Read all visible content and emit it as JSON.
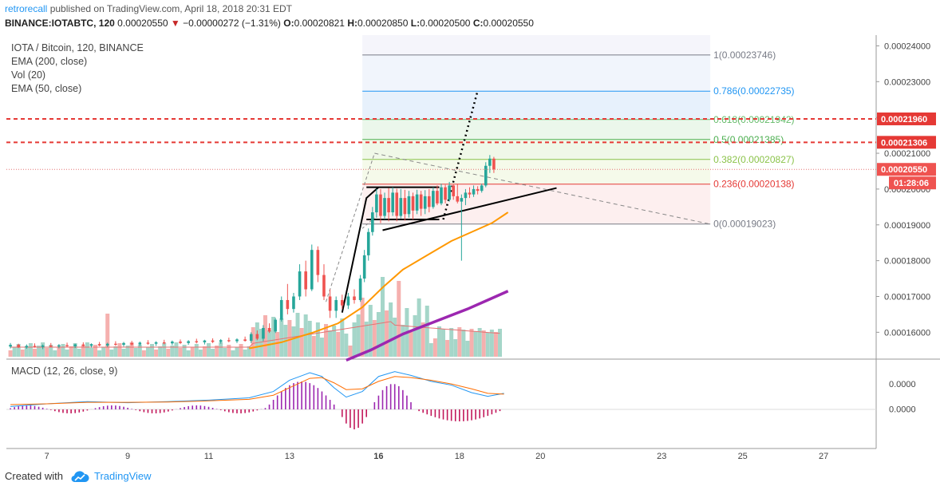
{
  "header": {
    "author": "retrorecall",
    "published": "published on TradingView.com, April 18, 2018 20:31 EDT",
    "symbol": "BINANCE:IOTABTC, 120",
    "last": "0.00020550",
    "change": "−0.00000272 (−1.31%)",
    "o_label": "O:",
    "o": "0.00020821",
    "h_label": "H:",
    "h": "0.00020850",
    "l_label": "L:",
    "l": "0.00020500",
    "c_label": "C:",
    "c": "0.00020550"
  },
  "legend": {
    "pair": "IOTA / Bitcoin, 120, BINANCE",
    "ema200": "EMA (200, close)",
    "vol": "Vol (20)",
    "ema50": "EMA (50, close)"
  },
  "macd_title": "MACD (12, 26, close, 9)",
  "footer": {
    "created": "Created with",
    "brand": "TradingView"
  },
  "colors": {
    "up": "#26a69a",
    "down": "#ef5350",
    "ema50": "#ff9800",
    "ema200": "#9c27b0",
    "macd": "#2196f3",
    "signal": "#ff6d00",
    "hist_pos": "#9c27b0",
    "red_line": "#e53935"
  },
  "chart_data": {
    "type": "candlestick",
    "price_axis": {
      "ylim": [
        0.0001525,
        0.000243
      ],
      "ticks": [
        "0.00024000",
        "0.00023000",
        "0.00022000",
        "0.00021000",
        "0.00020000",
        "0.00019000",
        "0.00018000",
        "0.00017000",
        "0.00016000"
      ],
      "tick_values": [
        0.00024,
        0.00023,
        0.00022,
        0.00021,
        0.0002,
        0.00019,
        0.00018,
        0.00017,
        0.00016
      ]
    },
    "macd_axis": {
      "ticks": [
        "0.0000",
        "0.0000"
      ]
    },
    "x_axis": {
      "labels": [
        "7",
        "9",
        "11",
        "13",
        "16",
        "18",
        "20",
        "23",
        "25",
        "27"
      ],
      "day_index": [
        1,
        3,
        5,
        7,
        9.2,
        11.2,
        13.2,
        16.2,
        18.2,
        20.2
      ],
      "range_days": [
        0.0,
        21.5
      ]
    },
    "price_tags": [
      {
        "label": "0.00021960",
        "value": 0.0002196,
        "kind": "horizontal-line"
      },
      {
        "label": "0.00021306",
        "value": 0.00021306,
        "kind": "horizontal-line"
      },
      {
        "label": "0.00020550",
        "value": 0.0002055,
        "kind": "last-price"
      },
      {
        "label": "01:28:06",
        "kind": "countdown"
      }
    ],
    "fibonacci": [
      {
        "level": "1",
        "text": "1(0.00023746)",
        "value": 0.00023746,
        "color": "#787b86"
      },
      {
        "level": "0.786",
        "text": "0.786(0.00022735)",
        "value": 0.00022735,
        "color": "#2196f3"
      },
      {
        "level": "0.618",
        "text": "0.618(0.00021942)",
        "value": 0.00021942,
        "color": "#66bb6a"
      },
      {
        "level": "0.5",
        "text": "0.5(0.00021385)",
        "value": 0.00021385,
        "color": "#4caf50"
      },
      {
        "level": "0.382",
        "text": "0.382(0.00020827)",
        "value": 0.00020827,
        "color": "#8bc34a"
      },
      {
        "level": "0.236",
        "text": "0.236(0.00020138)",
        "value": 0.00020138,
        "color": "#e53935"
      },
      {
        "level": "0",
        "text": "0(0.00019023)",
        "value": 0.00019023,
        "color": "#787b86"
      }
    ],
    "fib_span_days": [
      8.8,
      17.4
    ],
    "candles": [
      [
        0.1,
        0.000156,
        0.000157,
        0.0001555,
        0.0001565
      ],
      [
        0.3,
        0.0001565,
        0.0001568,
        0.0001556,
        0.0001558
      ],
      [
        0.5,
        0.0001558,
        0.0001566,
        0.0001554,
        0.0001562
      ],
      [
        0.7,
        0.0001562,
        0.0001569,
        0.0001557,
        0.0001559
      ],
      [
        0.9,
        0.0001559,
        0.0001566,
        0.0001553,
        0.0001563
      ],
      [
        1.1,
        0.0001563,
        0.000157,
        0.0001558,
        0.000156
      ],
      [
        1.3,
        0.000156,
        0.0001567,
        0.0001555,
        0.0001564
      ],
      [
        1.5,
        0.0001564,
        0.0001571,
        0.0001559,
        0.0001561
      ],
      [
        1.7,
        0.0001561,
        0.0001568,
        0.0001556,
        0.0001566
      ],
      [
        1.9,
        0.0001566,
        0.0001572,
        0.000156,
        0.0001562
      ],
      [
        2.1,
        0.0001562,
        0.0001569,
        0.0001557,
        0.0001567
      ],
      [
        2.3,
        0.0001567,
        0.0001573,
        0.0001561,
        0.0001563
      ],
      [
        2.5,
        0.0001563,
        0.0001571,
        0.0001559,
        0.0001568
      ],
      [
        2.7,
        0.0001568,
        0.0001575,
        0.0001562,
        0.0001565
      ],
      [
        2.9,
        0.0001565,
        0.0001573,
        0.000156,
        0.000157
      ],
      [
        3.1,
        0.000157,
        0.0001576,
        0.0001563,
        0.0001566
      ],
      [
        3.3,
        0.0001566,
        0.0001574,
        0.0001561,
        0.0001571
      ],
      [
        3.5,
        0.0001571,
        0.0001578,
        0.0001565,
        0.0001568
      ],
      [
        3.7,
        0.0001568,
        0.0001575,
        0.0001562,
        0.0001572
      ],
      [
        3.9,
        0.0001572,
        0.0001579,
        0.0001566,
        0.0001569
      ],
      [
        4.1,
        0.0001569,
        0.0001577,
        0.0001564,
        0.0001574
      ],
      [
        4.3,
        0.0001574,
        0.000158,
        0.0001567,
        0.000157
      ],
      [
        4.5,
        0.000157,
        0.0001578,
        0.0001565,
        0.0001575
      ],
      [
        4.7,
        0.0001575,
        0.0001582,
        0.0001569,
        0.0001572
      ],
      [
        4.9,
        0.0001572,
        0.0001579,
        0.0001566,
        0.0001577
      ],
      [
        5.1,
        0.0001577,
        0.0001583,
        0.000157,
        0.0001573
      ],
      [
        5.3,
        0.0001573,
        0.0001581,
        0.0001568,
        0.0001578
      ],
      [
        5.5,
        0.0001578,
        0.0001585,
        0.0001572,
        0.0001575
      ],
      [
        5.7,
        0.0001575,
        0.0001583,
        0.000157,
        0.000158
      ],
      [
        5.9,
        0.000158,
        0.0001588,
        0.0001574,
        0.0001576
      ],
      [
        6.05,
        0.0001576,
        0.00016,
        0.000157,
        0.0001595
      ],
      [
        6.2,
        0.0001595,
        0.0001605,
        0.0001578,
        0.0001582
      ],
      [
        6.35,
        0.0001582,
        0.000162,
        0.0001575,
        0.0001612
      ],
      [
        6.5,
        0.0001612,
        0.0001625,
        0.0001598,
        0.0001602
      ],
      [
        6.65,
        0.0001602,
        0.000164,
        0.0001598,
        0.0001635
      ],
      [
        6.8,
        0.0001635,
        0.00017,
        0.000163,
        0.000169
      ],
      [
        6.95,
        0.000169,
        0.0001735,
        0.000165,
        0.0001665
      ],
      [
        7.1,
        0.0001665,
        0.000171,
        0.0001655,
        0.00017
      ],
      [
        7.25,
        0.00017,
        0.000179,
        0.000169,
        0.000177
      ],
      [
        7.4,
        0.000177,
        0.00018,
        0.00017,
        0.000172
      ],
      [
        7.55,
        0.000172,
        0.0001845,
        0.0001715,
        0.000183
      ],
      [
        7.7,
        0.000183,
        0.000184,
        0.000174,
        0.000176
      ],
      [
        7.85,
        0.000176,
        0.000179,
        0.000169,
        0.00017
      ],
      [
        8.0,
        0.00017,
        0.000172,
        0.000164,
        0.000166
      ],
      [
        8.15,
        0.000166,
        0.00017,
        0.000164,
        0.000169
      ],
      [
        8.3,
        0.000169,
        0.0001705,
        0.0001665,
        0.0001675
      ],
      [
        8.45,
        0.0001675,
        0.000171,
        0.0001665,
        0.00017
      ],
      [
        8.6,
        0.00017,
        0.000172,
        0.000168,
        0.000169
      ],
      [
        8.75,
        0.000169,
        0.000176,
        0.0001685,
        0.000175
      ],
      [
        8.85,
        0.000175,
        0.000183,
        0.000174,
        0.0001815
      ],
      [
        8.95,
        0.0001815,
        0.000189,
        0.00018,
        0.000188
      ],
      [
        9.05,
        0.000188,
        0.000195,
        0.000187,
        0.0001935
      ],
      [
        9.15,
        0.0001935,
        0.0002,
        0.000192,
        0.0001985
      ],
      [
        9.25,
        0.0001985,
        0.0002,
        0.0001905,
        0.0001925
      ],
      [
        9.35,
        0.0001925,
        0.000199,
        0.0001915,
        0.0001975
      ],
      [
        9.45,
        0.0001975,
        0.0002003,
        0.000191,
        0.0001935
      ],
      [
        9.55,
        0.0001935,
        0.0002005,
        0.0001925,
        0.000199
      ],
      [
        9.65,
        0.000199,
        0.0002001,
        0.000191,
        0.0001925
      ],
      [
        9.75,
        0.0001925,
        0.0002,
        0.0001918,
        0.0001975
      ],
      [
        9.85,
        0.0001975,
        0.0001998,
        0.0001912,
        0.000193
      ],
      [
        9.95,
        0.000193,
        0.0001995,
        0.000192,
        0.000198
      ],
      [
        10.05,
        0.000198,
        0.000199,
        0.0001915,
        0.000194
      ],
      [
        10.15,
        0.000194,
        0.0001998,
        0.000193,
        0.0001985
      ],
      [
        10.25,
        0.0001985,
        0.0001995,
        0.0001925,
        0.0001945
      ],
      [
        10.35,
        0.0001945,
        0.0001997,
        0.000193,
        0.000198
      ],
      [
        10.45,
        0.000198,
        0.0002,
        0.0001935,
        0.000195
      ],
      [
        10.55,
        0.000195,
        0.0002005,
        0.0001945,
        0.0001995
      ],
      [
        10.65,
        0.0001995,
        0.000201,
        0.0001955,
        0.000196
      ],
      [
        10.75,
        0.000196,
        0.0002015,
        0.0001955,
        0.0002005
      ],
      [
        10.85,
        0.0002005,
        0.0002012,
        0.000196,
        0.000197
      ],
      [
        10.95,
        0.000197,
        0.000202,
        0.0001965,
        0.000201
      ],
      [
        11.05,
        0.000201,
        0.0002012,
        0.000197,
        0.000198
      ],
      [
        11.15,
        0.000198,
        0.0002015,
        0.000196,
        0.0001965
      ],
      [
        11.25,
        0.0001965,
        0.0001985,
        0.00018,
        0.0001975
      ],
      [
        11.35,
        0.0001975,
        0.0002,
        0.0001955,
        0.000199
      ],
      [
        11.45,
        0.000199,
        0.0002005,
        0.0001975,
        0.0001985
      ],
      [
        11.55,
        0.0001985,
        0.000201,
        0.0001978,
        0.0002
      ],
      [
        11.65,
        0.0002,
        0.0002008,
        0.0001985,
        0.0001995
      ],
      [
        11.75,
        0.0001995,
        0.0002015,
        0.000199,
        0.000201
      ],
      [
        11.85,
        0.000201,
        0.0002075,
        0.0002005,
        0.0002065
      ],
      [
        11.95,
        0.0002065,
        0.0002095,
        0.0002045,
        0.0002085
      ],
      [
        12.05,
        0.0002085,
        0.000209,
        0.0002045,
        0.0002055
      ]
    ],
    "ema50": [
      [
        6.0,
        0.0001555
      ],
      [
        6.8,
        0.0001572
      ],
      [
        7.6,
        0.00016
      ],
      [
        8.2,
        0.0001625
      ],
      [
        8.8,
        0.000167
      ],
      [
        9.3,
        0.0001725
      ],
      [
        9.8,
        0.0001775
      ],
      [
        10.4,
        0.0001815
      ],
      [
        11.0,
        0.0001855
      ],
      [
        11.5,
        0.000188
      ],
      [
        12.0,
        0.0001905
      ],
      [
        12.4,
        0.0001935
      ]
    ],
    "ema200": [
      [
        8.4,
        0.0001522
      ],
      [
        9.0,
        0.000155
      ],
      [
        9.8,
        0.0001595
      ],
      [
        10.6,
        0.000163
      ],
      [
        11.4,
        0.0001665
      ],
      [
        12.0,
        0.0001695
      ],
      [
        12.4,
        0.0001715
      ]
    ],
    "volume_ylim": [
      0,
      1
    ],
    "volume_ema_line": "thin-orange",
    "macd_ylim": [
      -1,
      1
    ],
    "macd_line": [
      [
        0.1,
        -0.05
      ],
      [
        1,
        0.02
      ],
      [
        2,
        0.08
      ],
      [
        3,
        0.05
      ],
      [
        4,
        0.08
      ],
      [
        5,
        0.12
      ],
      [
        6,
        0.18
      ],
      [
        6.6,
        0.35
      ],
      [
        7.0,
        0.65
      ],
      [
        7.5,
        0.85
      ],
      [
        7.8,
        0.75
      ],
      [
        8.1,
        0.45
      ],
      [
        8.4,
        0.2
      ],
      [
        8.8,
        0.35
      ],
      [
        9.2,
        0.75
      ],
      [
        9.6,
        0.88
      ],
      [
        10.0,
        0.78
      ],
      [
        10.5,
        0.62
      ],
      [
        11.0,
        0.52
      ],
      [
        11.5,
        0.32
      ],
      [
        11.9,
        0.22
      ],
      [
        12.3,
        0.3
      ]
    ],
    "signal_line": [
      [
        0.1,
        0.0
      ],
      [
        1,
        0.02
      ],
      [
        2,
        0.06
      ],
      [
        3,
        0.06
      ],
      [
        4,
        0.07
      ],
      [
        5,
        0.1
      ],
      [
        6,
        0.14
      ],
      [
        6.6,
        0.25
      ],
      [
        7.0,
        0.45
      ],
      [
        7.5,
        0.7
      ],
      [
        7.8,
        0.72
      ],
      [
        8.1,
        0.58
      ],
      [
        8.4,
        0.4
      ],
      [
        8.8,
        0.42
      ],
      [
        9.2,
        0.62
      ],
      [
        9.6,
        0.75
      ],
      [
        10.0,
        0.72
      ],
      [
        10.5,
        0.65
      ],
      [
        11.0,
        0.55
      ],
      [
        11.5,
        0.42
      ],
      [
        11.9,
        0.3
      ],
      [
        12.3,
        0.28
      ]
    ],
    "histogram_start_day": 0.1,
    "histogram_step_days": 0.1
  }
}
